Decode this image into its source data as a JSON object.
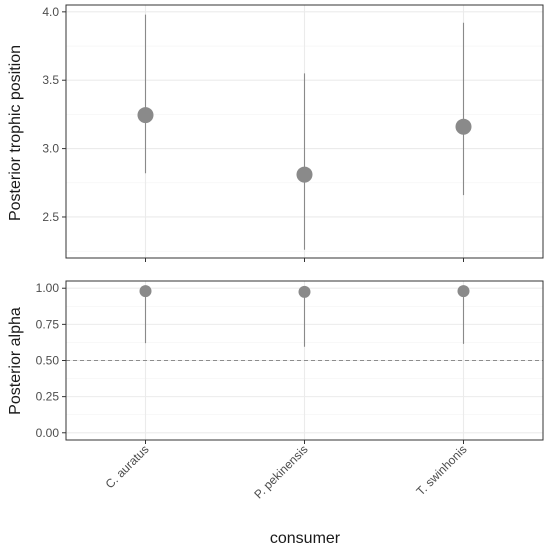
{
  "chart_data": [
    {
      "type": "scatter",
      "panel": "top",
      "ylabel": "Posterior trophic position",
      "categories": [
        "C. auratus",
        "P. pekinensis",
        "T. swinhonis"
      ],
      "points": [
        3.245,
        2.81,
        3.16
      ],
      "interval_low": [
        2.82,
        2.26,
        2.66
      ],
      "interval_high": [
        3.98,
        3.55,
        3.92
      ],
      "ylim": [
        2.2,
        4.05
      ],
      "yticks": [
        2.5,
        3.0,
        3.5,
        4.0
      ],
      "ytick_labels": [
        "2.5",
        "3.0",
        "3.5",
        "4.0"
      ],
      "grid": true
    },
    {
      "type": "scatter",
      "panel": "bottom",
      "ylabel": "Posterior alpha",
      "xlabel": "consumer",
      "categories": [
        "C. auratus",
        "P. pekinensis",
        "T. swinhonis"
      ],
      "points": [
        0.98,
        0.975,
        0.98
      ],
      "interval_low": [
        0.62,
        0.595,
        0.615
      ],
      "interval_high": [
        0.995,
        0.995,
        0.995
      ],
      "reference_line": 0.5,
      "ylim": [
        -0.05,
        1.05
      ],
      "yticks": [
        0.0,
        0.25,
        0.5,
        0.75,
        1.0
      ],
      "ytick_labels": [
        "0.00",
        "0.25",
        "0.50",
        "0.75",
        "1.00"
      ],
      "grid": true
    }
  ],
  "colors": {
    "point": "#8a8a8a",
    "interval": "#8a8a8a",
    "reference_line": "#8c8c8c",
    "grid": "#ebebeb",
    "panel_border": "#333333"
  }
}
